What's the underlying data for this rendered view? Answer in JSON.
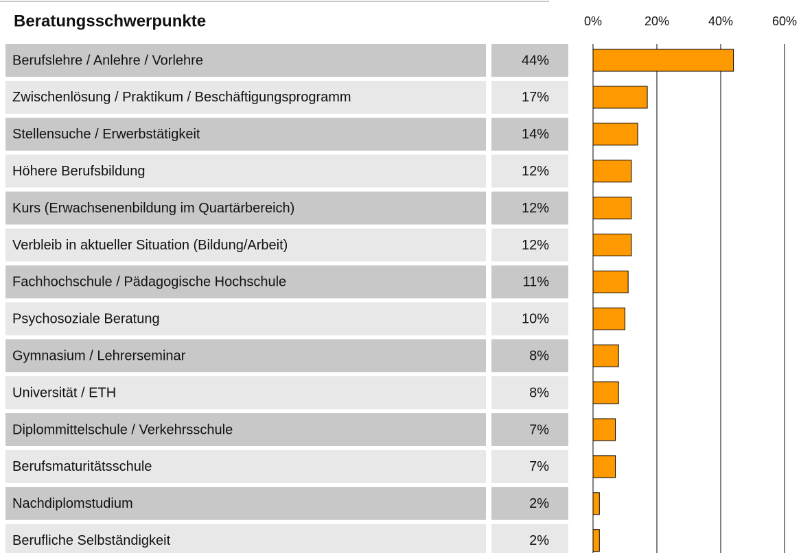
{
  "chart_data": {
    "type": "bar",
    "orientation": "horizontal",
    "title": "Beratungsschwerpunkte",
    "categories": [
      "Berufslehre / Anlehre / Vorlehre",
      "Zwischenlösung / Praktikum / Beschäftigungsprogramm",
      "Stellensuche / Erwerbstätigkeit",
      "Höhere Berufsbildung",
      "Kurs (Erwachsenenbildung im Quartärbereich)",
      "Verbleib in aktueller Situation (Bildung/Arbeit)",
      "Fachhochschule / Pädagogische Hochschule",
      "Psychosoziale Beratung",
      "Gymnasium / Lehrerseminar",
      "Universität / ETH",
      "Diplommittelschule / Verkehrsschule",
      "Berufsmaturitätsschule",
      "Nachdiplomstudium",
      "Berufliche Selbständigkeit"
    ],
    "values": [
      44,
      17,
      14,
      12,
      12,
      12,
      11,
      10,
      8,
      8,
      7,
      7,
      2,
      2
    ],
    "value_labels": [
      "44%",
      "17%",
      "14%",
      "12%",
      "12%",
      "12%",
      "11%",
      "10%",
      "8%",
      "8%",
      "7%",
      "7%",
      "2%",
      "2%"
    ],
    "color": "#ff9900",
    "xlim": [
      0,
      60
    ],
    "xticks": [
      {
        "value": 0,
        "label": "0%"
      },
      {
        "value": 20,
        "label": "20%"
      },
      {
        "value": 40,
        "label": "40%"
      },
      {
        "value": 60,
        "label": "60%"
      }
    ],
    "grid": true
  }
}
